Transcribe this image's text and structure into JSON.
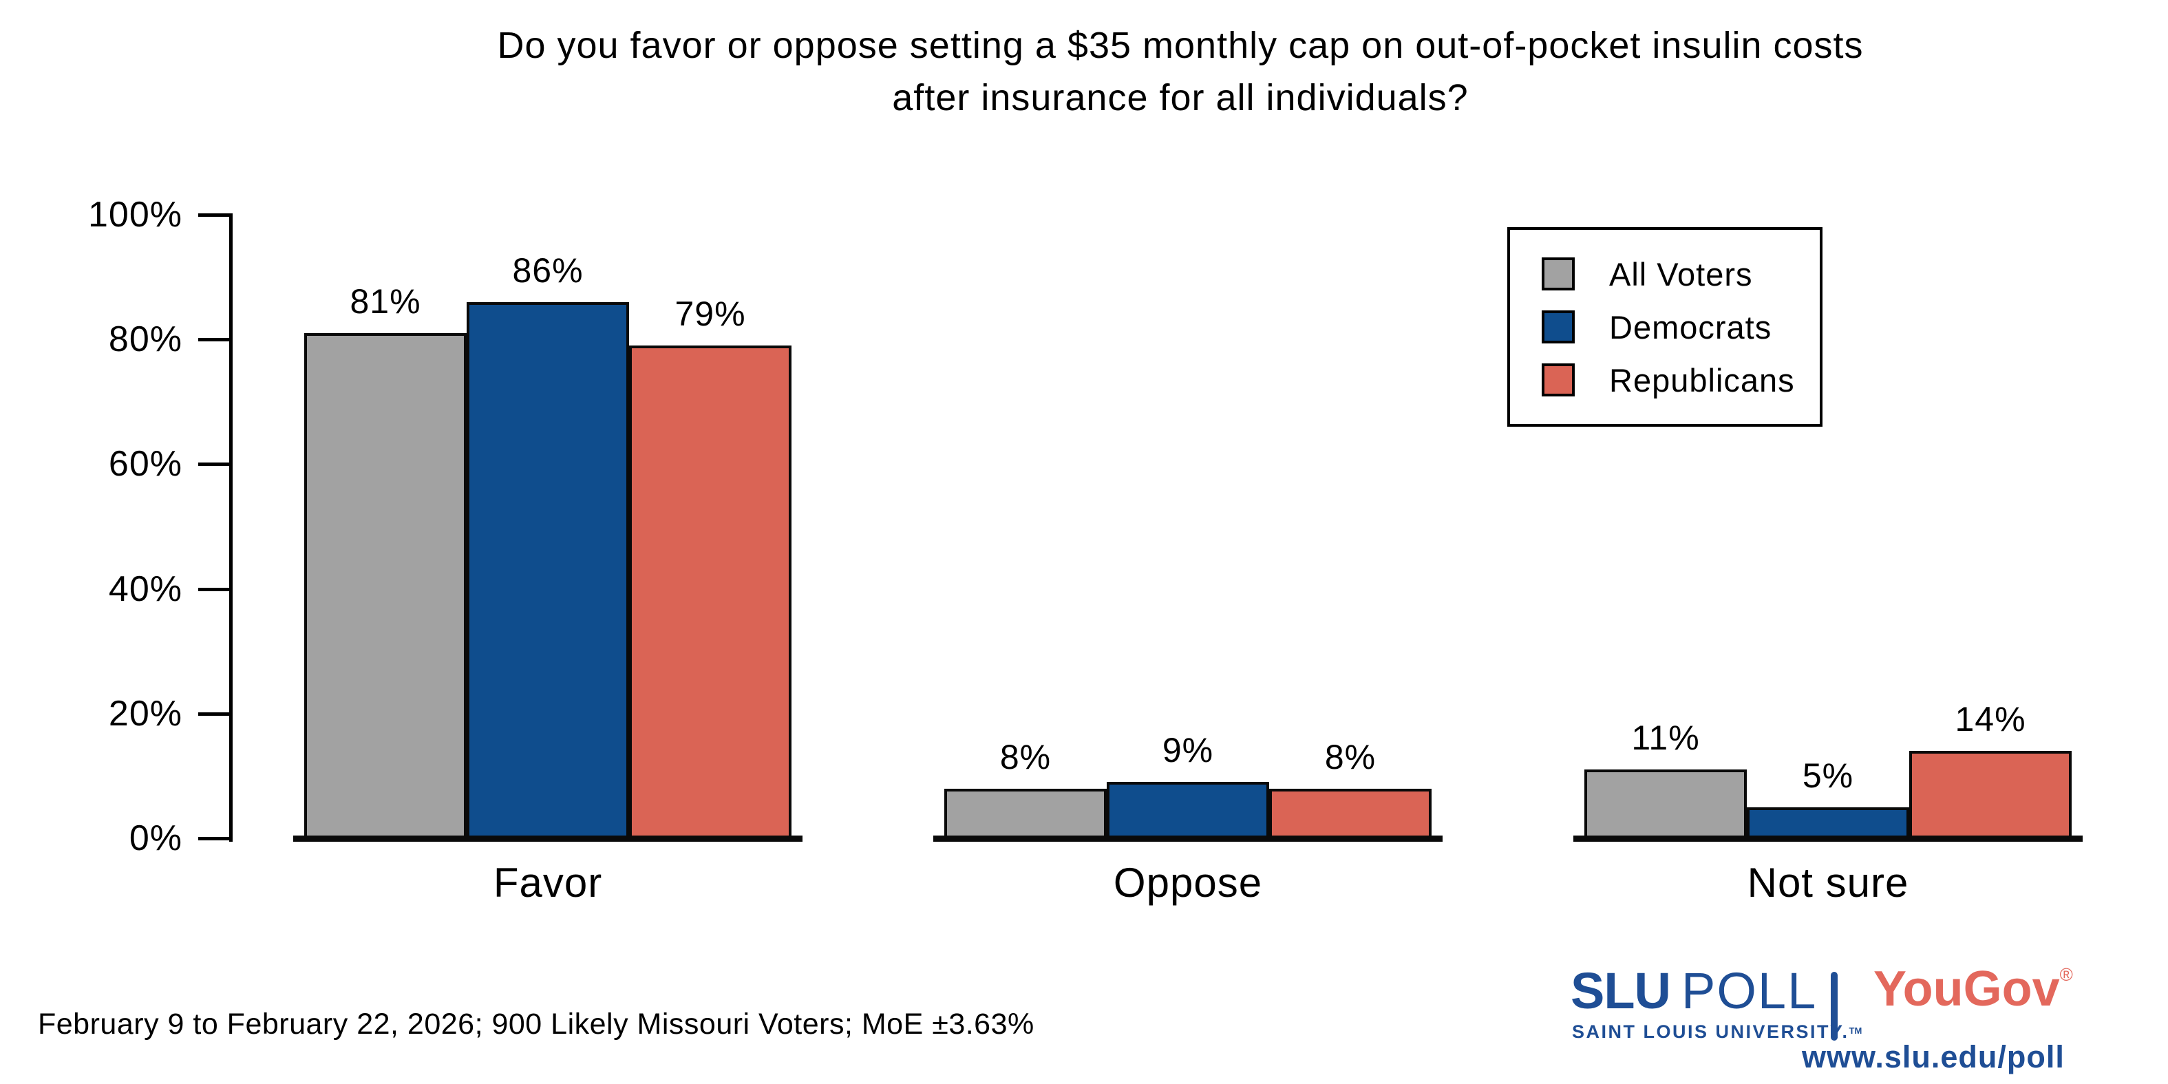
{
  "title": {
    "line1": "Do you favor or oppose setting a $35 monthly cap on out-of-pocket insulin costs",
    "line2": "after insurance for all individuals?"
  },
  "chart_data": {
    "type": "bar",
    "title": "Do you favor or oppose setting a $35 monthly cap on out-of-pocket insulin costs after insurance for all individuals?",
    "categories": [
      "Favor",
      "Oppose",
      "Not sure"
    ],
    "series": [
      {
        "name": "All Voters",
        "color": "#A2A2A2",
        "values": [
          81,
          8,
          11
        ]
      },
      {
        "name": "Democrats",
        "color": "#0F4D8D",
        "values": [
          86,
          9,
          5
        ]
      },
      {
        "name": "Republicans",
        "color": "#DA6455",
        "values": [
          79,
          8,
          14
        ]
      }
    ],
    "ylim": [
      0,
      100
    ],
    "yticks": [
      "0%",
      "20%",
      "40%",
      "60%",
      "80%",
      "100%"
    ],
    "value_label_format": "percent",
    "grid": false,
    "legend_position": "upper-right",
    "bar_outline_color": "#000000"
  },
  "footer": {
    "source_note": "February 9 to February 22, 2026; 900 Likely Missouri Voters; MoE ±3.63%"
  },
  "branding": {
    "slu_wordmark_primary": "SLU",
    "slu_wordmark_secondary": "POLL",
    "slu_subtitle": "SAINT LOUIS UNIVERSITY.",
    "slu_trademark": "TM",
    "yougov_name": "YouGov",
    "yougov_registered": "®",
    "website": "www.slu.edu/poll",
    "slu_blue": "#1F4E95",
    "yougov_salmon": "#E3685C"
  }
}
